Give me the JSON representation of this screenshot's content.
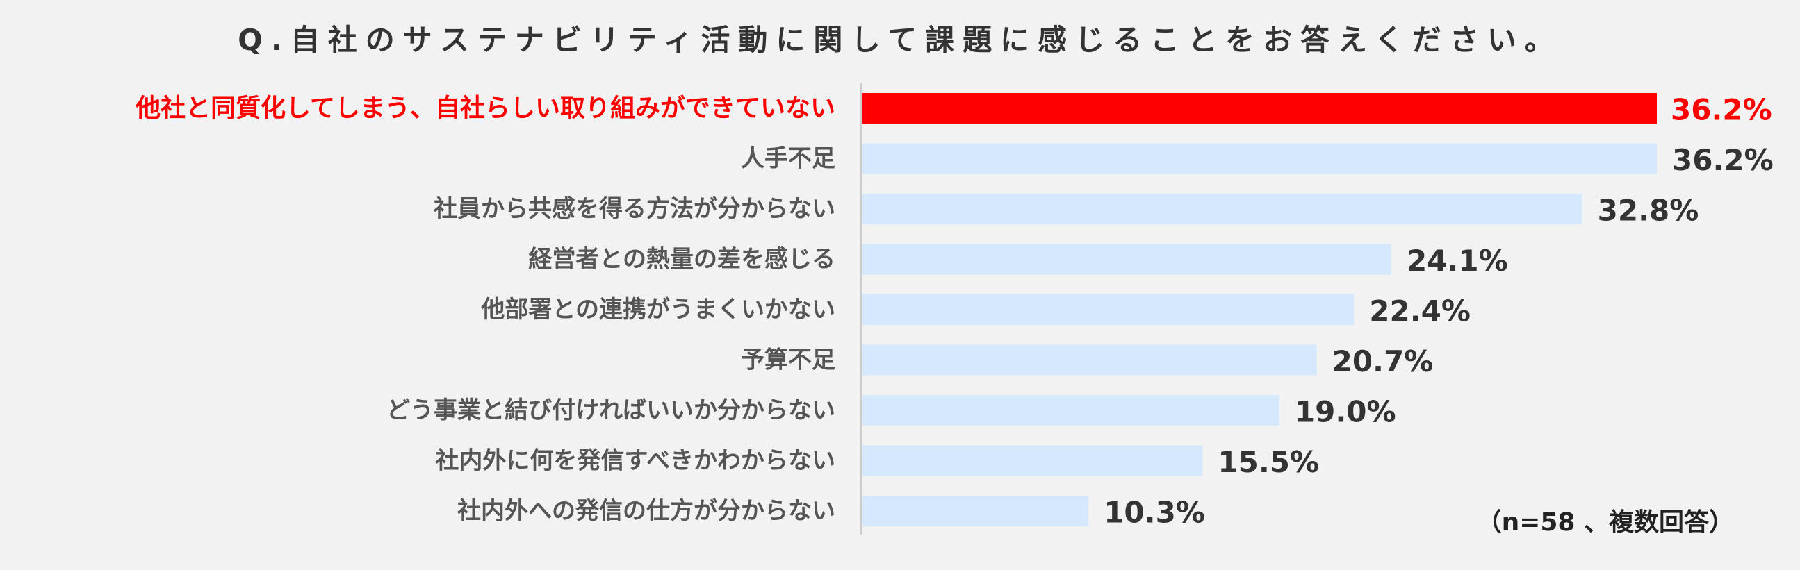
{
  "colors": {
    "background": "#f2f2f2",
    "bar_default": "#d6e8fb",
    "bar_highlight": "#ff0000",
    "axis": "#cccccc"
  },
  "chart_data": {
    "type": "bar",
    "orientation": "horizontal",
    "title": "Q.自社のサステナビリティ活動に関して課題に感じることをお答えください。",
    "note": "（n=58 、複数回答）",
    "unit": "%",
    "xlim": [
      0,
      36.2
    ],
    "grid": false,
    "highlight_index": 0,
    "categories": [
      "他社と同質化してしまう、自社らしい取り組みができていない",
      "人手不足",
      "社員から共感を得る方法が分からない",
      "経営者との熱量の差を感じる",
      "他部署との連携がうまくいかない",
      "予算不足",
      "どう事業と結び付ければいいか分からない",
      "社内外に何を発信すべきかわからない",
      "社内外への発信の仕方が分からない"
    ],
    "values": [
      36.2,
      36.2,
      32.8,
      24.1,
      22.4,
      20.7,
      19.0,
      15.5,
      10.3
    ],
    "value_labels": [
      "36.2%",
      "36.2%",
      "32.8%",
      "24.1%",
      "22.4%",
      "20.7%",
      "19.0%",
      "15.5%",
      "10.3%"
    ]
  }
}
